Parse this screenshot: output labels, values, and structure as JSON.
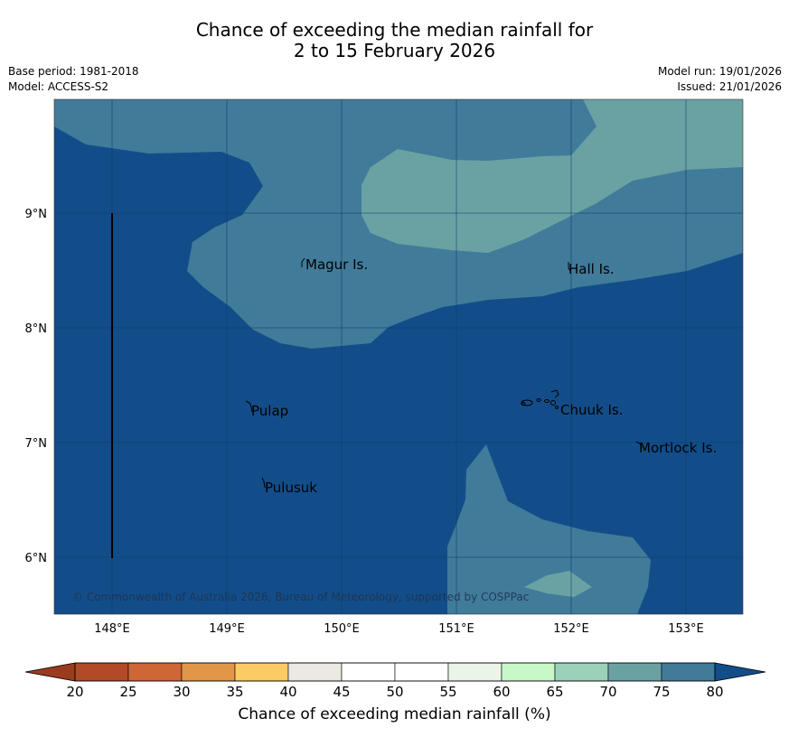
{
  "title": {
    "line1": "Chance of exceeding the median rainfall for",
    "line2": "2 to 15 February 2026"
  },
  "meta": {
    "base_period": "Base period: 1981-2018",
    "model": "Model: ACCESS-S2",
    "model_run": "Model run: 19/01/2026",
    "issued": "Issued: 21/01/2026"
  },
  "map": {
    "lat_labels": [
      "9°N",
      "8°N",
      "7°N",
      "6°N"
    ],
    "lon_labels": [
      "148°E",
      "149°E",
      "150°E",
      "151°E",
      "152°E",
      "153°E"
    ],
    "places": [
      "Magur Is.",
      "Hall Is.",
      "Pulap",
      "Chuuk Is.",
      "Mortlock Is.",
      "Pulusuk"
    ],
    "copyright": "© Commonwealth of Australia 2026, Bureau of Meteorology, supported by COSPPac",
    "colors": {
      "above_80": "#134d89",
      "band_75_80": "#417b9a",
      "band_70_75": "#6aa2a4"
    }
  },
  "colorbar": {
    "label": "Chance of exceeding median rainfall (%)",
    "ticks": [
      "20",
      "25",
      "30",
      "35",
      "40",
      "45",
      "50",
      "55",
      "60",
      "65",
      "70",
      "75",
      "80"
    ],
    "under_color": "#9a3a1e",
    "over_color": "#134d89",
    "bins": [
      "#b24a27",
      "#cf6635",
      "#e29748",
      "#fdcb63",
      "#ece9e4",
      "#ffffff",
      "#ffffff",
      "#eaf5e8",
      "#c8f8c8",
      "#9bd1b8",
      "#6aa2a4",
      "#417b9a"
    ]
  }
}
